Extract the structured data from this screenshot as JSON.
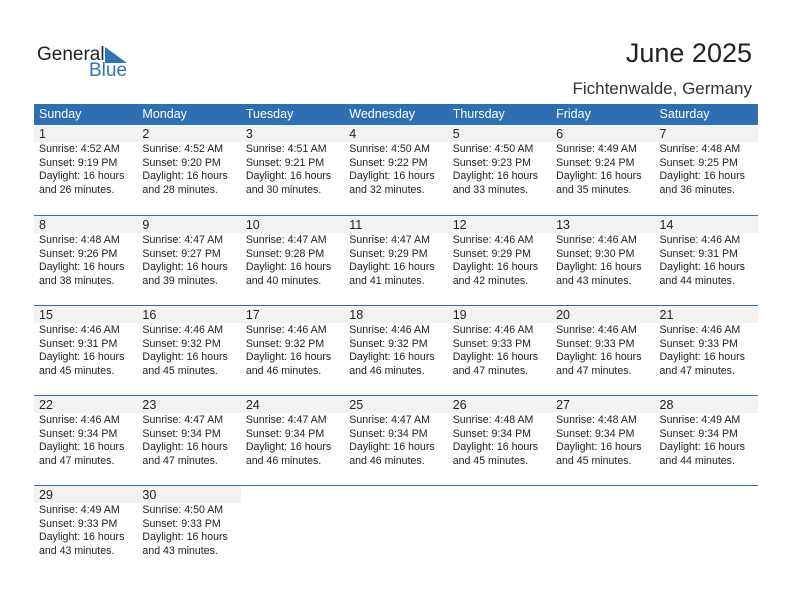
{
  "logo": {
    "word1": "General",
    "word2": "Blue",
    "color": "#2e75b6"
  },
  "title": "June 2025",
  "location": "Fichtenwalde, Germany",
  "header_color": "#2e6fb4",
  "days": [
    "Sunday",
    "Monday",
    "Tuesday",
    "Wednesday",
    "Thursday",
    "Friday",
    "Saturday"
  ],
  "weeks": [
    [
      {
        "date": "1",
        "sunrise": "Sunrise: 4:52 AM",
        "sunset": "Sunset: 9:19 PM",
        "daylight1": "Daylight: 16 hours",
        "daylight2": "and 26 minutes."
      },
      {
        "date": "2",
        "sunrise": "Sunrise: 4:52 AM",
        "sunset": "Sunset: 9:20 PM",
        "daylight1": "Daylight: 16 hours",
        "daylight2": "and 28 minutes."
      },
      {
        "date": "3",
        "sunrise": "Sunrise: 4:51 AM",
        "sunset": "Sunset: 9:21 PM",
        "daylight1": "Daylight: 16 hours",
        "daylight2": "and 30 minutes."
      },
      {
        "date": "4",
        "sunrise": "Sunrise: 4:50 AM",
        "sunset": "Sunset: 9:22 PM",
        "daylight1": "Daylight: 16 hours",
        "daylight2": "and 32 minutes."
      },
      {
        "date": "5",
        "sunrise": "Sunrise: 4:50 AM",
        "sunset": "Sunset: 9:23 PM",
        "daylight1": "Daylight: 16 hours",
        "daylight2": "and 33 minutes."
      },
      {
        "date": "6",
        "sunrise": "Sunrise: 4:49 AM",
        "sunset": "Sunset: 9:24 PM",
        "daylight1": "Daylight: 16 hours",
        "daylight2": "and 35 minutes."
      },
      {
        "date": "7",
        "sunrise": "Sunrise: 4:48 AM",
        "sunset": "Sunset: 9:25 PM",
        "daylight1": "Daylight: 16 hours",
        "daylight2": "and 36 minutes."
      }
    ],
    [
      {
        "date": "8",
        "sunrise": "Sunrise: 4:48 AM",
        "sunset": "Sunset: 9:26 PM",
        "daylight1": "Daylight: 16 hours",
        "daylight2": "and 38 minutes."
      },
      {
        "date": "9",
        "sunrise": "Sunrise: 4:47 AM",
        "sunset": "Sunset: 9:27 PM",
        "daylight1": "Daylight: 16 hours",
        "daylight2": "and 39 minutes."
      },
      {
        "date": "10",
        "sunrise": "Sunrise: 4:47 AM",
        "sunset": "Sunset: 9:28 PM",
        "daylight1": "Daylight: 16 hours",
        "daylight2": "and 40 minutes."
      },
      {
        "date": "11",
        "sunrise": "Sunrise: 4:47 AM",
        "sunset": "Sunset: 9:29 PM",
        "daylight1": "Daylight: 16 hours",
        "daylight2": "and 41 minutes."
      },
      {
        "date": "12",
        "sunrise": "Sunrise: 4:46 AM",
        "sunset": "Sunset: 9:29 PM",
        "daylight1": "Daylight: 16 hours",
        "daylight2": "and 42 minutes."
      },
      {
        "date": "13",
        "sunrise": "Sunrise: 4:46 AM",
        "sunset": "Sunset: 9:30 PM",
        "daylight1": "Daylight: 16 hours",
        "daylight2": "and 43 minutes."
      },
      {
        "date": "14",
        "sunrise": "Sunrise: 4:46 AM",
        "sunset": "Sunset: 9:31 PM",
        "daylight1": "Daylight: 16 hours",
        "daylight2": "and 44 minutes."
      }
    ],
    [
      {
        "date": "15",
        "sunrise": "Sunrise: 4:46 AM",
        "sunset": "Sunset: 9:31 PM",
        "daylight1": "Daylight: 16 hours",
        "daylight2": "and 45 minutes."
      },
      {
        "date": "16",
        "sunrise": "Sunrise: 4:46 AM",
        "sunset": "Sunset: 9:32 PM",
        "daylight1": "Daylight: 16 hours",
        "daylight2": "and 45 minutes."
      },
      {
        "date": "17",
        "sunrise": "Sunrise: 4:46 AM",
        "sunset": "Sunset: 9:32 PM",
        "daylight1": "Daylight: 16 hours",
        "daylight2": "and 46 minutes."
      },
      {
        "date": "18",
        "sunrise": "Sunrise: 4:46 AM",
        "sunset": "Sunset: 9:32 PM",
        "daylight1": "Daylight: 16 hours",
        "daylight2": "and 46 minutes."
      },
      {
        "date": "19",
        "sunrise": "Sunrise: 4:46 AM",
        "sunset": "Sunset: 9:33 PM",
        "daylight1": "Daylight: 16 hours",
        "daylight2": "and 47 minutes."
      },
      {
        "date": "20",
        "sunrise": "Sunrise: 4:46 AM",
        "sunset": "Sunset: 9:33 PM",
        "daylight1": "Daylight: 16 hours",
        "daylight2": "and 47 minutes."
      },
      {
        "date": "21",
        "sunrise": "Sunrise: 4:46 AM",
        "sunset": "Sunset: 9:33 PM",
        "daylight1": "Daylight: 16 hours",
        "daylight2": "and 47 minutes."
      }
    ],
    [
      {
        "date": "22",
        "sunrise": "Sunrise: 4:46 AM",
        "sunset": "Sunset: 9:34 PM",
        "daylight1": "Daylight: 16 hours",
        "daylight2": "and 47 minutes."
      },
      {
        "date": "23",
        "sunrise": "Sunrise: 4:47 AM",
        "sunset": "Sunset: 9:34 PM",
        "daylight1": "Daylight: 16 hours",
        "daylight2": "and 47 minutes."
      },
      {
        "date": "24",
        "sunrise": "Sunrise: 4:47 AM",
        "sunset": "Sunset: 9:34 PM",
        "daylight1": "Daylight: 16 hours",
        "daylight2": "and 46 minutes."
      },
      {
        "date": "25",
        "sunrise": "Sunrise: 4:47 AM",
        "sunset": "Sunset: 9:34 PM",
        "daylight1": "Daylight: 16 hours",
        "daylight2": "and 46 minutes."
      },
      {
        "date": "26",
        "sunrise": "Sunrise: 4:48 AM",
        "sunset": "Sunset: 9:34 PM",
        "daylight1": "Daylight: 16 hours",
        "daylight2": "and 45 minutes."
      },
      {
        "date": "27",
        "sunrise": "Sunrise: 4:48 AM",
        "sunset": "Sunset: 9:34 PM",
        "daylight1": "Daylight: 16 hours",
        "daylight2": "and 45 minutes."
      },
      {
        "date": "28",
        "sunrise": "Sunrise: 4:49 AM",
        "sunset": "Sunset: 9:34 PM",
        "daylight1": "Daylight: 16 hours",
        "daylight2": "and 44 minutes."
      }
    ],
    [
      {
        "date": "29",
        "sunrise": "Sunrise: 4:49 AM",
        "sunset": "Sunset: 9:33 PM",
        "daylight1": "Daylight: 16 hours",
        "daylight2": "and 43 minutes."
      },
      {
        "date": "30",
        "sunrise": "Sunrise: 4:50 AM",
        "sunset": "Sunset: 9:33 PM",
        "daylight1": "Daylight: 16 hours",
        "daylight2": "and 43 minutes."
      },
      null,
      null,
      null,
      null,
      null
    ]
  ]
}
